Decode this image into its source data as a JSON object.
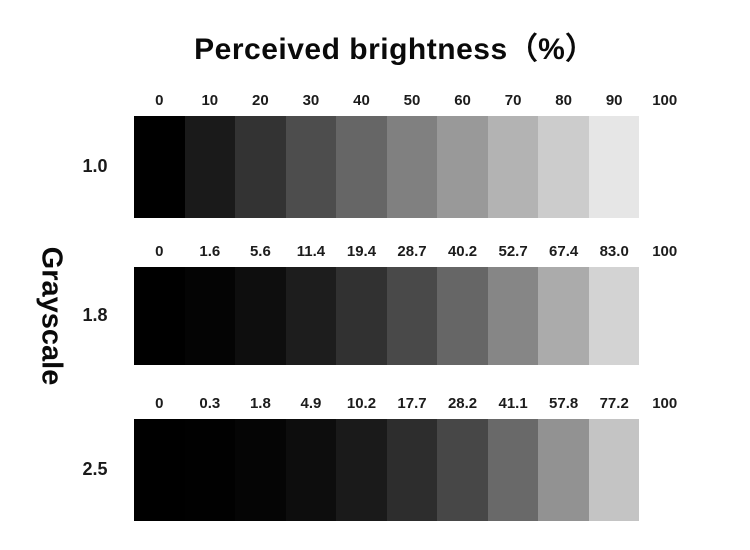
{
  "title": "Perceived brightness（%）",
  "y_axis_label": "Grayscale",
  "chart_data": {
    "type": "heatmap",
    "title": "Perceived brightness（%）",
    "ylabel": "Grayscale",
    "xlabel": "",
    "x_percent_steps": [
      0,
      10,
      20,
      30,
      40,
      50,
      60,
      70,
      80,
      90,
      100
    ],
    "row_labels": [
      "1.0",
      "1.8",
      "2.5"
    ],
    "series": [
      {
        "name": "1.0",
        "gamma": 1.0,
        "tick_labels": [
          "0",
          "10",
          "20",
          "30",
          "40",
          "50",
          "60",
          "70",
          "80",
          "90",
          "100"
        ],
        "perceived_brightness": [
          0,
          10,
          20,
          30,
          40,
          50,
          60,
          70,
          80,
          90,
          100
        ],
        "swatch_colors": [
          "#000000",
          "#1a1a1a",
          "#333333",
          "#4d4d4d",
          "#666666",
          "#808080",
          "#999999",
          "#b3b3b3",
          "#cccccc",
          "#e6e6e6",
          "#ffffff"
        ]
      },
      {
        "name": "1.8",
        "gamma": 1.8,
        "tick_labels": [
          "0",
          "1.6",
          "5.6",
          "11.4",
          "19.4",
          "28.7",
          "40.2",
          "52.7",
          "67.4",
          "83.0",
          "100"
        ],
        "perceived_brightness": [
          0,
          1.6,
          5.6,
          11.4,
          19.4,
          28.7,
          40.2,
          52.7,
          67.4,
          83.0,
          100
        ],
        "swatch_colors": [
          "#000000",
          "#040404",
          "#0e0e0e",
          "#1d1d1d",
          "#313131",
          "#494949",
          "#666666",
          "#868686",
          "#ababab",
          "#d3d3d3",
          "#ffffff"
        ]
      },
      {
        "name": "2.5",
        "gamma": 2.5,
        "tick_labels": [
          "0",
          "0.3",
          "1.8",
          "4.9",
          "10.2",
          "17.7",
          "28.2",
          "41.1",
          "57.8",
          "77.2",
          "100"
        ],
        "perceived_brightness": [
          0,
          0.3,
          1.8,
          4.9,
          10.2,
          17.7,
          28.2,
          41.1,
          57.8,
          77.2,
          100
        ],
        "swatch_colors": [
          "#000000",
          "#010101",
          "#050505",
          "#0d0d0d",
          "#1a1a1a",
          "#2d2d2d",
          "#474747",
          "#696969",
          "#929292",
          "#c4c4c4",
          "#ffffff"
        ]
      }
    ],
    "colors": {
      "background": "#ffffff",
      "text": "#0a0a0a"
    },
    "legend": "none",
    "grid": false
  }
}
